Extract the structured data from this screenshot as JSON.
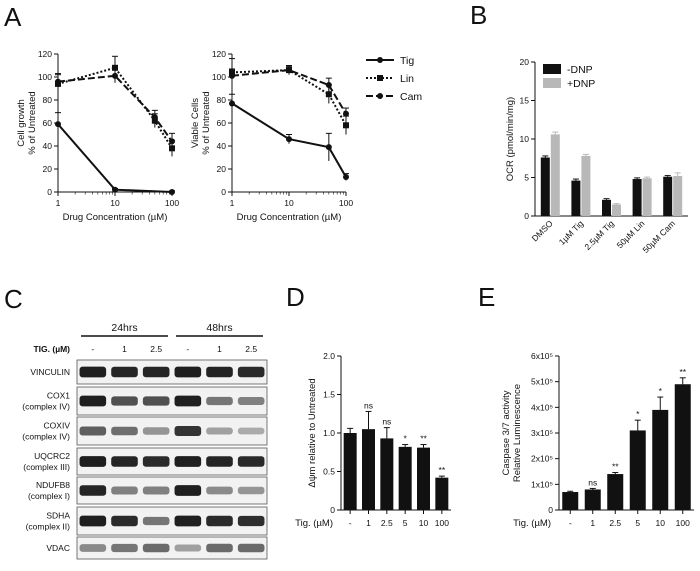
{
  "panels": {
    "a": "A",
    "b": "B",
    "c": "C",
    "d": "D",
    "e": "E"
  },
  "chart_data": [
    {
      "id": "A1",
      "type": "line",
      "xlabel": "Drug Concentration (µM)",
      "ylabel_lines": [
        "Cell growth",
        "% of Untreated"
      ],
      "xscale": "log",
      "xlim": [
        1,
        100
      ],
      "ylim": [
        0,
        120
      ],
      "xticks": [
        1,
        10,
        100
      ],
      "yticks": [
        0,
        20,
        40,
        60,
        80,
        100,
        120
      ],
      "series": [
        {
          "key": "tig",
          "x": [
            1,
            10,
            100
          ],
          "y": [
            59,
            2,
            0
          ],
          "err": [
            10,
            1,
            1
          ]
        },
        {
          "key": "lin",
          "x": [
            1,
            10,
            50,
            100
          ],
          "y": [
            94,
            108,
            62,
            38
          ],
          "err": [
            8,
            10,
            6,
            7
          ]
        },
        {
          "key": "cam",
          "x": [
            1,
            10,
            50,
            100
          ],
          "y": [
            96,
            101,
            65,
            44
          ],
          "err": [
            7,
            6,
            6,
            7
          ]
        }
      ]
    },
    {
      "id": "A2",
      "type": "line",
      "xlabel": "Drug Concentration (µM)",
      "ylabel_lines": [
        "Viable Cells",
        "% of Untreated"
      ],
      "xscale": "log",
      "xlim": [
        1,
        100
      ],
      "ylim": [
        0,
        120
      ],
      "xticks": [
        1,
        10,
        100
      ],
      "yticks": [
        0,
        20,
        40,
        60,
        80,
        100,
        120
      ],
      "legend_position": "right",
      "series": [
        {
          "key": "tig",
          "name": "Tig",
          "x": [
            1,
            10,
            50,
            100
          ],
          "y": [
            77,
            46,
            39,
            13
          ],
          "err": [
            8,
            4,
            12,
            3
          ]
        },
        {
          "key": "lin",
          "name": "Lin",
          "x": [
            1,
            10,
            50,
            100
          ],
          "y": [
            104,
            106,
            85,
            58
          ],
          "err": [
            12,
            3,
            8,
            8
          ]
        },
        {
          "key": "cam",
          "name": "Cam",
          "x": [
            1,
            10,
            50,
            100
          ],
          "y": [
            101,
            106,
            93,
            68
          ],
          "err": [
            6,
            4,
            6,
            5
          ]
        }
      ]
    },
    {
      "id": "B",
      "type": "bar",
      "ylabel": "OCR (pmol/min/mg)",
      "ylim": [
        0,
        20
      ],
      "yticks": [
        0,
        5,
        10,
        15,
        20
      ],
      "categories": [
        "DMSO",
        "1µM Tig",
        "2.5µM Tig",
        "50µM Lin",
        "50µM Cam"
      ],
      "legend_position": "top-right",
      "series": [
        {
          "name": "-DNP",
          "color": "#111111",
          "values": [
            7.6,
            4.6,
            2.1,
            4.8,
            5.1
          ],
          "err": [
            0.2,
            0.2,
            0.15,
            0.15,
            0.15
          ]
        },
        {
          "name": "+DNP",
          "color": "#b8b8b8",
          "values": [
            10.6,
            7.8,
            1.5,
            4.9,
            5.2
          ],
          "err": [
            0.3,
            0.2,
            0.1,
            0.15,
            0.4
          ]
        }
      ]
    },
    {
      "id": "D",
      "type": "bar",
      "ylabel": "Δψm relative to Untreated",
      "xaxis_title": "Tig. (µM)",
      "ylim": [
        0,
        2.0
      ],
      "yticks": [
        0,
        0.5,
        1.0,
        1.5,
        2.0
      ],
      "ytick_labels": [
        "0",
        "0.5",
        "1.0",
        "1.5",
        "2.0"
      ],
      "categories": [
        "-",
        "1",
        "2.5",
        "5",
        "10",
        "100"
      ],
      "values": [
        1.0,
        1.05,
        0.93,
        0.82,
        0.81,
        0.42
      ],
      "err": [
        0.06,
        0.23,
        0.14,
        0.03,
        0.04,
        0.02
      ],
      "annotations": [
        "",
        "ns",
        "ns",
        "*",
        "**",
        "**"
      ]
    },
    {
      "id": "E",
      "type": "bar",
      "ylabel_lines": [
        "Caspase 3/7 activity",
        "Relative Luminescence"
      ],
      "xaxis_title": "Tig. (µM)",
      "ylim": [
        0,
        600000
      ],
      "yticks": [
        0,
        100000,
        200000,
        300000,
        400000,
        500000,
        600000
      ],
      "ytick_labels": [
        "0",
        "1x10⁵",
        "2x10⁵",
        "3x10⁵",
        "4x10⁵",
        "5x10⁵",
        "6x10⁵"
      ],
      "categories": [
        "-",
        "1",
        "2.5",
        "5",
        "10",
        "100"
      ],
      "values": [
        70000,
        80000,
        140000,
        310000,
        390000,
        490000
      ],
      "err": [
        3000,
        4000,
        6000,
        40000,
        50000,
        25000
      ],
      "annotations": [
        "",
        "ns",
        "**",
        "*",
        "*",
        "**"
      ]
    }
  ],
  "western_blot": {
    "time_groups": [
      "24hrs",
      "48hrs"
    ],
    "condition_title": "TIG. (µM)",
    "lanes": [
      "-",
      "1",
      "2.5",
      "-",
      "1",
      "2.5"
    ],
    "rows": [
      {
        "label_lines": [
          "VINCULIN"
        ],
        "intensities": [
          0.95,
          0.92,
          0.92,
          0.95,
          0.93,
          0.9
        ]
      },
      {
        "label_lines": [
          "COX1",
          "(complex IV)"
        ],
        "intensities": [
          0.95,
          0.72,
          0.72,
          0.95,
          0.55,
          0.5
        ]
      },
      {
        "label_lines": [
          "COXIV",
          "(complex IV)"
        ],
        "intensities": [
          0.65,
          0.58,
          0.4,
          0.85,
          0.35,
          0.3
        ]
      },
      {
        "label_lines": [
          "UQCRC2",
          "(complex III)"
        ],
        "intensities": [
          0.95,
          0.92,
          0.9,
          0.95,
          0.92,
          0.9
        ]
      },
      {
        "label_lines": [
          "NDUFB8",
          "(complex I)"
        ],
        "intensities": [
          0.92,
          0.5,
          0.5,
          0.95,
          0.45,
          0.4
        ]
      },
      {
        "label_lines": [
          "SDHA",
          "(complex II)"
        ],
        "intensities": [
          0.95,
          0.9,
          0.55,
          0.95,
          0.9,
          0.88
        ]
      },
      {
        "label_lines": [
          "VDAC"
        ],
        "intensities": [
          0.45,
          0.55,
          0.6,
          0.35,
          0.6,
          0.6
        ]
      }
    ]
  }
}
